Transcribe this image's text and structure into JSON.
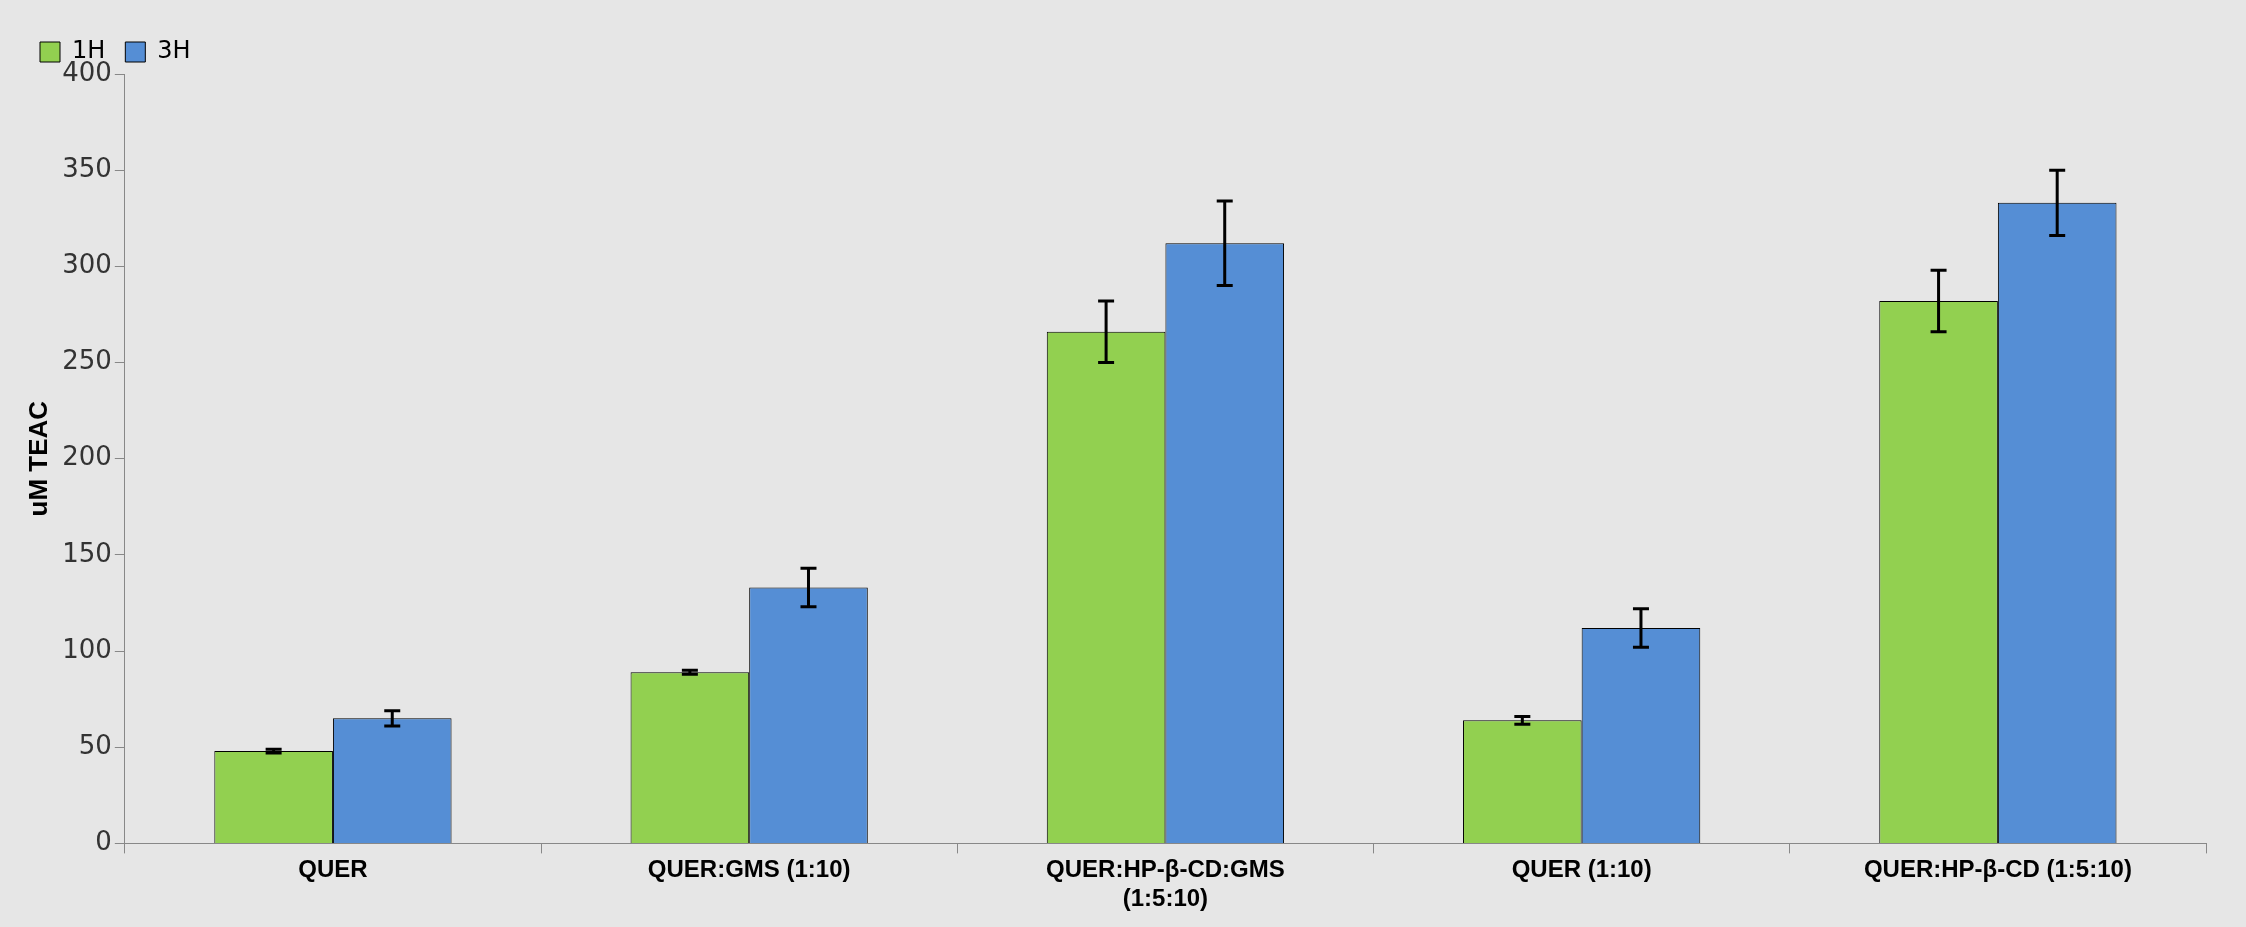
{
  "chart_data": {
    "type": "bar",
    "ylabel": "uM TEAC",
    "categories": [
      "QUER",
      "QUER:GMS (1:10)",
      "QUER:HP-β-CD:GMS (1:5:10)",
      "QUER (1:10)",
      "QUER:HP-β-CD (1:5:10)"
    ],
    "series": [
      {
        "name": "1H",
        "color": "#92d050",
        "values": [
          48,
          89,
          266,
          64,
          282
        ],
        "errors": [
          1,
          1,
          16,
          2,
          16
        ]
      },
      {
        "name": "3H",
        "color": "#558ed5",
        "values": [
          65,
          133,
          312,
          112,
          333
        ],
        "errors": [
          4,
          10,
          22,
          10,
          17
        ]
      }
    ],
    "ylim": [
      0,
      400
    ],
    "yticks": [
      0,
      50,
      100,
      150,
      200,
      250,
      300,
      350,
      400
    ],
    "grid": false,
    "legend": "top left"
  }
}
